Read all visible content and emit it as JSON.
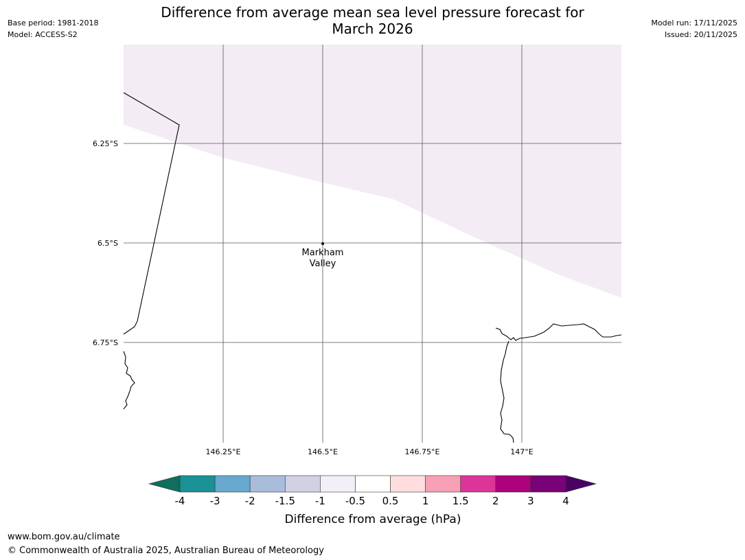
{
  "header": {
    "base_period": "Base period: 1981-2018",
    "model": "Model: ACCESS-S2",
    "model_run": "Model run: 17/11/2025",
    "issued": "Issued: 20/11/2025",
    "title_line1": "Difference from average mean sea level pressure forecast for",
    "title_line2": "March 2026"
  },
  "map": {
    "lat_labels": [
      "6.25°S",
      "6.5°S",
      "6.75°S"
    ],
    "lon_labels": [
      "146.25°E",
      "146.5°E",
      "146.75°E",
      "147°E"
    ],
    "location": {
      "name_line1": "Markham",
      "name_line2": "Valley"
    },
    "shaded_class": "-1 to -0.5",
    "colors": {
      "shaded": "#f3ecf5",
      "grid": "#555555",
      "coast": "#000000"
    }
  },
  "colorbar": {
    "label": "Difference from average (hPa)",
    "ticks": [
      "-4",
      "-3",
      "-2",
      "-1.5",
      "-1",
      "-0.5",
      "0.5",
      "1",
      "1.5",
      "2",
      "3",
      "4"
    ],
    "colors": [
      "#1a9193",
      "#67a9cf",
      "#a8bcdc",
      "#d2d0e4",
      "#f4eef7",
      "#ffffff",
      "#fddddd",
      "#f8a0b8",
      "#dd3497",
      "#ae017e",
      "#7a0177"
    ],
    "extend_low": "#0f6e5e",
    "extend_high": "#4b0063"
  },
  "footer": {
    "url": "www.bom.gov.au/climate",
    "copyright": "© Commonwealth of Australia 2025, Australian Bureau of Meteorology"
  }
}
